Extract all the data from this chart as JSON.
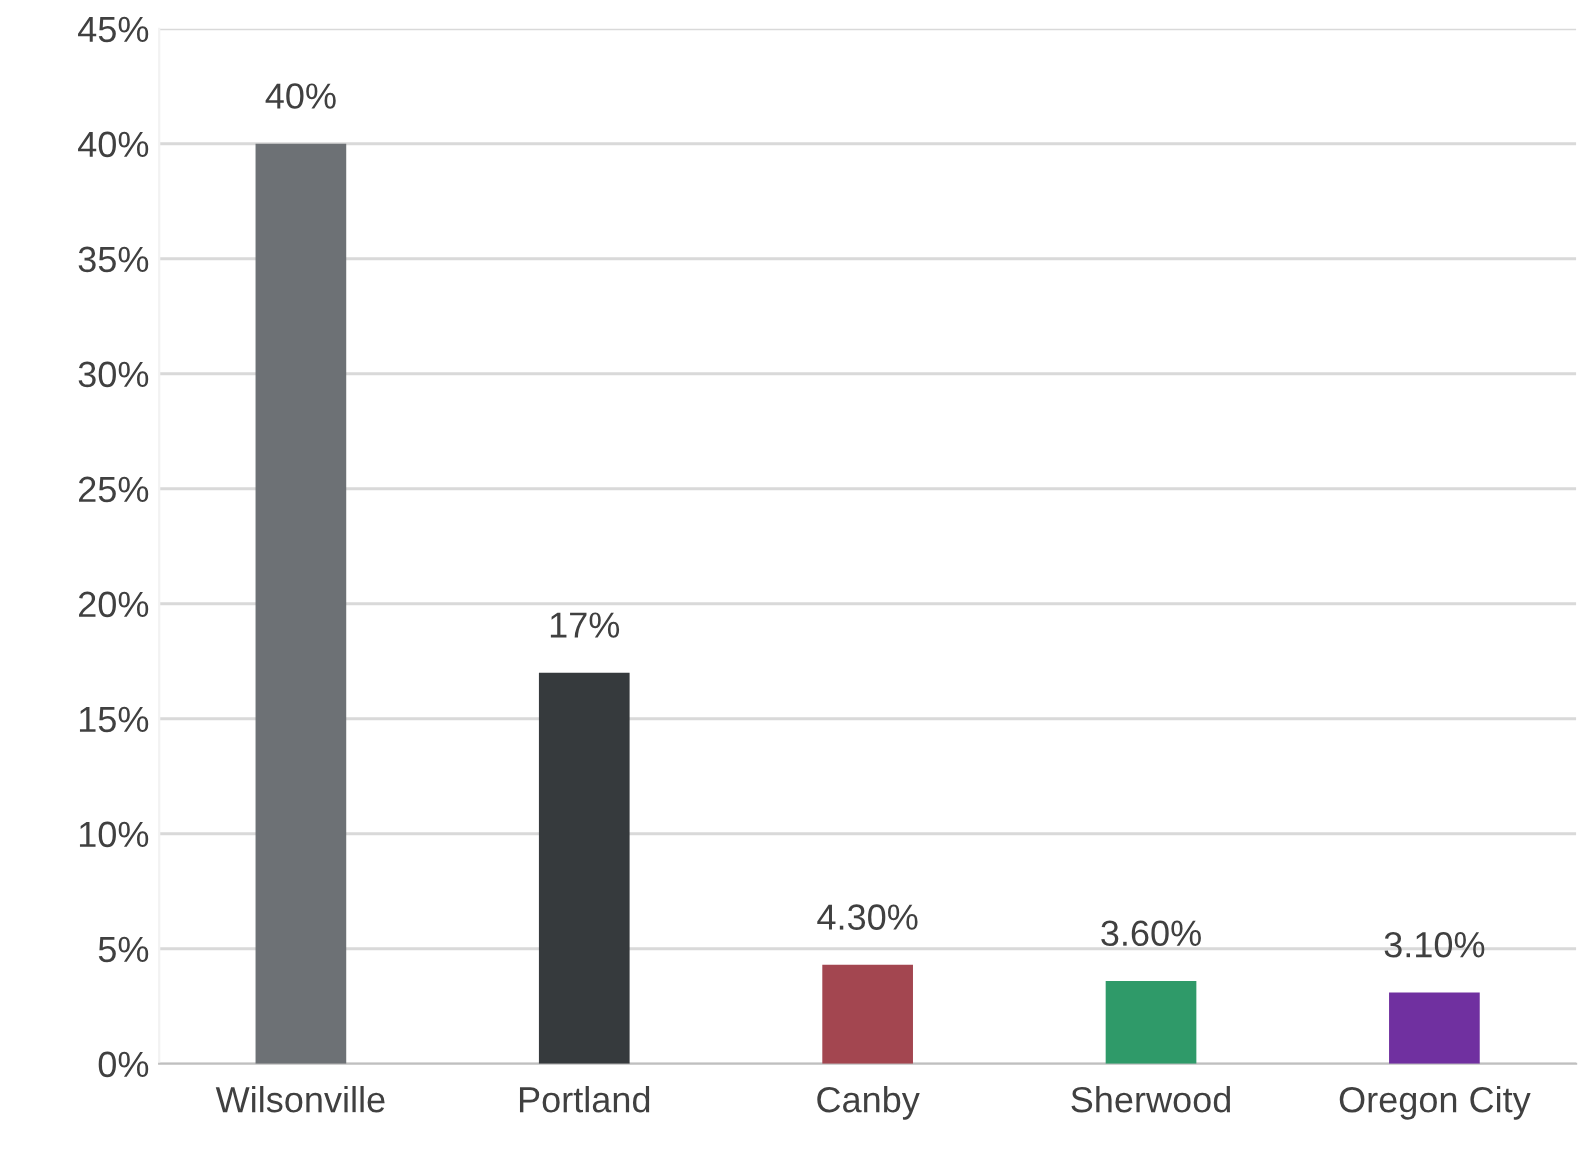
{
  "chart_data": {
    "type": "bar",
    "categories": [
      "Wilsonville",
      "Portland",
      "Canby",
      "Sherwood",
      "Oregon City"
    ],
    "values": [
      40,
      17,
      4.3,
      3.6,
      3.1
    ],
    "colors": [
      "#6d7175",
      "#363a3d",
      "#a34650",
      "#2f9a69",
      "#7030a0"
    ],
    "value_labels": [
      "40%",
      "17%",
      "4.30%",
      "3.60%",
      "3.10%"
    ],
    "ylim": [
      0,
      45
    ],
    "yticks": [
      {
        "value": 0,
        "label": "0%"
      },
      {
        "value": 5,
        "label": "5%"
      },
      {
        "value": 10,
        "label": "10%"
      },
      {
        "value": 15,
        "label": "15%"
      },
      {
        "value": 20,
        "label": "20%"
      },
      {
        "value": 25,
        "label": "25%"
      },
      {
        "value": 30,
        "label": "30%"
      },
      {
        "value": 35,
        "label": "35%"
      },
      {
        "value": 40,
        "label": "40%"
      },
      {
        "value": 45,
        "label": "45%"
      }
    ],
    "grid": "y"
  }
}
